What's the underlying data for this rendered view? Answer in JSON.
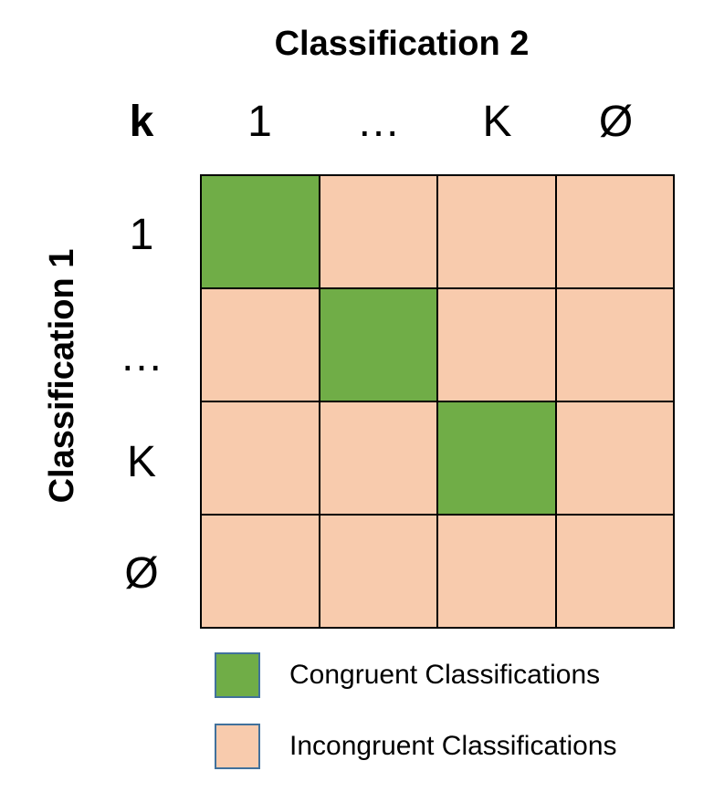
{
  "colors": {
    "congruent": "#70ad47",
    "incongruent": "#f8cbad",
    "grid_line": "#000000",
    "swatch_border": "#41719c"
  },
  "titles": {
    "columns": "Classification 2",
    "rows": "Classification 1",
    "corner": "k"
  },
  "column_headers": [
    "1",
    "…",
    "K",
    "Ø"
  ],
  "row_headers": [
    "1",
    "…",
    "K",
    "Ø"
  ],
  "matrix": [
    [
      "congruent",
      "incongruent",
      "incongruent",
      "incongruent"
    ],
    [
      "incongruent",
      "congruent",
      "incongruent",
      "incongruent"
    ],
    [
      "incongruent",
      "incongruent",
      "congruent",
      "incongruent"
    ],
    [
      "incongruent",
      "incongruent",
      "incongruent",
      "incongruent"
    ]
  ],
  "legend": [
    {
      "key": "congruent",
      "label": "Congruent Classifications"
    },
    {
      "key": "incongruent",
      "label": "Incongruent Classifications"
    }
  ]
}
